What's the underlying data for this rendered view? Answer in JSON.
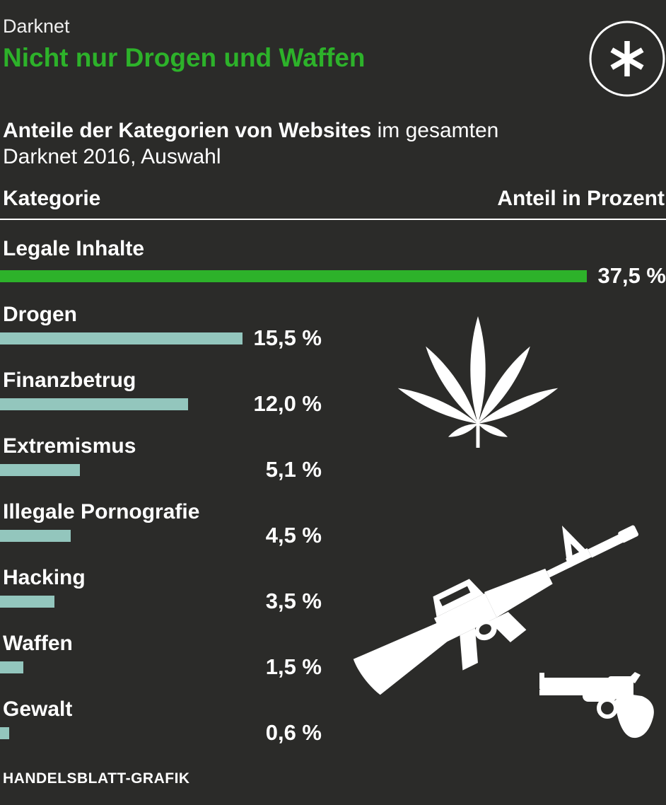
{
  "header": {
    "kicker": "Darknet",
    "title": "Nicht nur Drogen und Waffen"
  },
  "logo": {
    "icon": "asterisk-in-circle"
  },
  "subtitle": {
    "lead_bold": "Anteile der Kategorien von Websites",
    "lead_rest": " im gesamten",
    "line2": "Darknet 2016, Auswahl"
  },
  "table": {
    "column_left": "Kategorie",
    "column_right": "Anteil in Prozent"
  },
  "footer": {
    "credit": "HANDELSBLATT-GRAFIK"
  },
  "colors": {
    "background": "#2b2b29",
    "accent_green": "#2db22a",
    "bar_teal": "#93c6bd",
    "text": "#ffffff"
  },
  "icons": [
    {
      "name": "cannabis-leaf",
      "color": "#ffffff"
    },
    {
      "name": "assault-rifle",
      "color": "#ffffff"
    },
    {
      "name": "revolver",
      "color": "#ffffff"
    }
  ],
  "chart_data": {
    "type": "bar",
    "orientation": "horizontal",
    "title": "Nicht nur Drogen und Waffen",
    "subtitle": "Anteile der Kategorien von Websites im gesamten Darknet 2016, Auswahl",
    "categories": [
      "Legale Inhalte",
      "Drogen",
      "Finanzbetrug",
      "Extremismus",
      "Illegale Pornografie",
      "Hacking",
      "Waffen",
      "Gewalt"
    ],
    "values": [
      37.5,
      15.5,
      12.0,
      5.1,
      4.5,
      3.5,
      1.5,
      0.6
    ],
    "value_labels": [
      "37,5 %",
      "15,5 %",
      "12,0 %",
      "5,1 %",
      "4,5 %",
      "3,5 %",
      "1,5 %",
      "0,6 %"
    ],
    "unit": "Prozent",
    "highlight_index": 0,
    "xlim": [
      0,
      37.5
    ],
    "grid": false,
    "legend": null,
    "source": "HANDELSBLATT-GRAFIK"
  }
}
